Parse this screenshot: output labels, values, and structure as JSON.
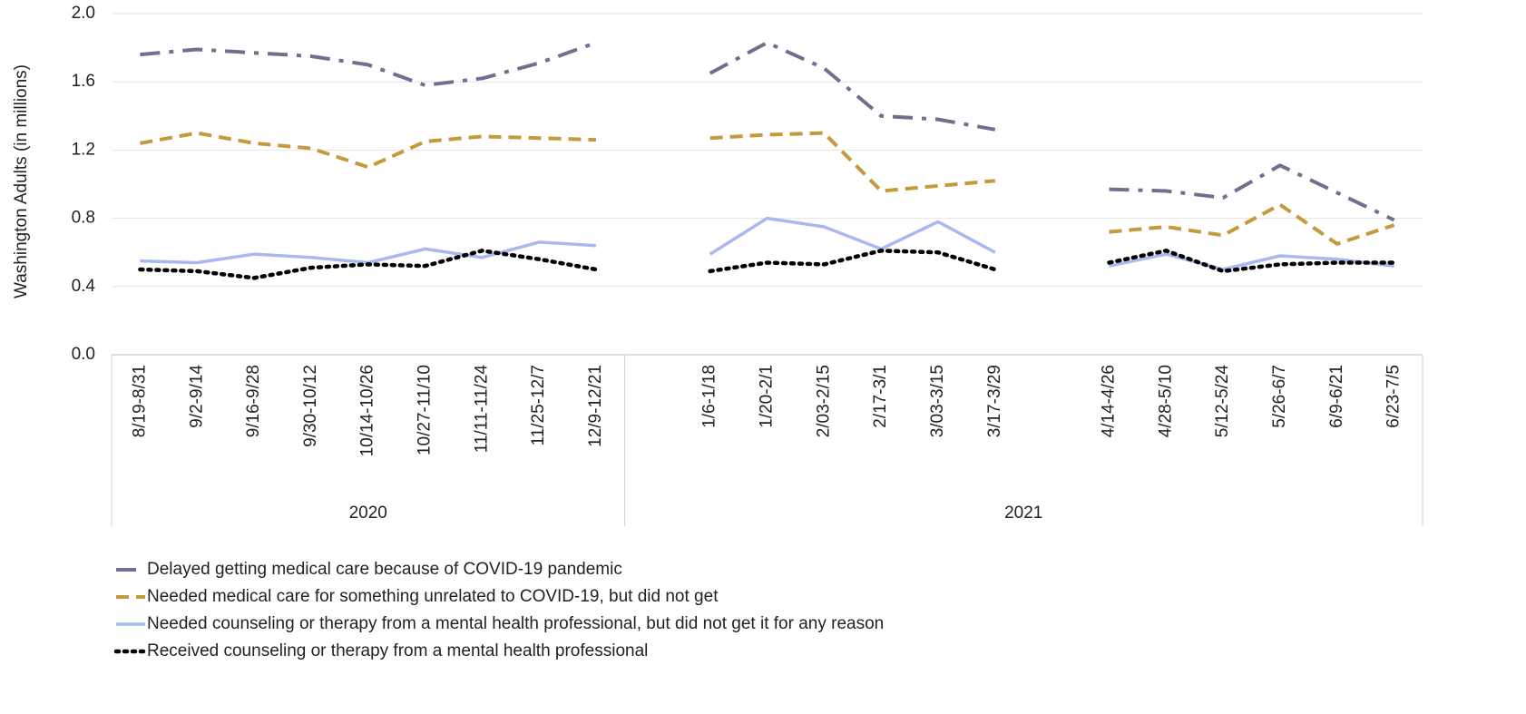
{
  "chart_data": {
    "type": "line",
    "y_label": "Washington Adults (in millions)",
    "categories": [
      "8/19-8/31",
      "9/2-9/14",
      "9/16-9/28",
      "9/30-10/12",
      "10/14-10/26",
      "10/27-11/10",
      "11/11-11/24",
      "11/25-12/7",
      "12/9-12/21",
      null,
      "1/6-1/18",
      "1/20-2/1",
      "2/03-2/15",
      "2/17-3/1",
      "3/03-3/15",
      "3/17-3/29",
      null,
      "4/14-4/26",
      "4/28-5/10",
      "5/12-5/24",
      "5/26-6/7",
      "6/9-6/21",
      "6/23-7/5"
    ],
    "x_groups": [
      "2020",
      "2021"
    ],
    "series": [
      {
        "name": "Delayed getting medical care because of COVID-19 pandemic",
        "color": "#6f6f8f",
        "line_style": "dash-dot",
        "values": [
          1.76,
          1.79,
          1.77,
          1.75,
          1.7,
          1.58,
          1.62,
          1.71,
          1.83,
          null,
          1.65,
          1.83,
          1.68,
          1.4,
          1.38,
          1.32,
          null,
          0.97,
          0.96,
          0.92,
          1.11,
          0.95,
          0.79
        ]
      },
      {
        "name": "Needed medical care for something unrelated to COVID-19, but did not get",
        "color": "#c49a3c",
        "line_style": "dash",
        "values": [
          1.24,
          1.3,
          1.24,
          1.21,
          1.1,
          1.25,
          1.28,
          1.27,
          1.26,
          null,
          1.27,
          1.29,
          1.3,
          0.96,
          0.99,
          1.02,
          null,
          0.72,
          0.75,
          0.7,
          0.88,
          0.65,
          0.76
        ]
      },
      {
        "name": "Needed counseling or therapy from a mental health professional, but did not get it for any reason",
        "color": "#a9b9f0",
        "line_style": "solid",
        "values": [
          0.55,
          0.54,
          0.59,
          0.57,
          0.54,
          0.62,
          0.57,
          0.66,
          0.64,
          null,
          0.59,
          0.8,
          0.75,
          0.62,
          0.78,
          0.6,
          null,
          0.52,
          0.59,
          0.5,
          0.58,
          0.56,
          0.52
        ]
      },
      {
        "name": "Received counseling or therapy from a mental health professional",
        "color": "#000000",
        "line_style": "dot",
        "values": [
          0.5,
          0.49,
          0.45,
          0.51,
          0.53,
          0.52,
          0.61,
          0.56,
          0.5,
          null,
          0.49,
          0.54,
          0.53,
          0.61,
          0.6,
          0.5,
          null,
          0.54,
          0.61,
          0.49,
          0.53,
          0.54,
          0.54
        ]
      }
    ],
    "ylim": [
      0,
      2.0
    ],
    "yticks": [
      {
        "value": 0,
        "label": "0.0"
      },
      0.4,
      0.8,
      1.2,
      1.6,
      {
        "value": 2.0,
        "label": "2.0"
      }
    ],
    "grid": true
  }
}
